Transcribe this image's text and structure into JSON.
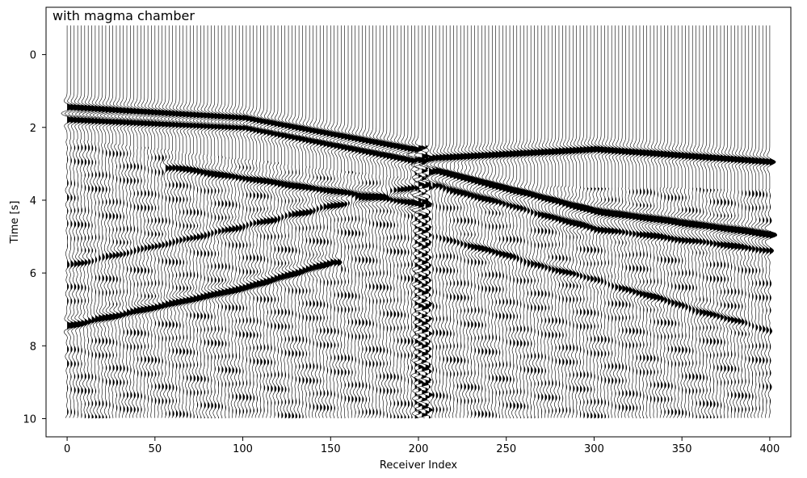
{
  "chart_data": {
    "type": "seismic-wiggle",
    "title": "with magma chamber",
    "xlabel": "Receiver Index",
    "ylabel": "Time [s]",
    "xlim": [
      -12,
      412
    ],
    "ylim": [
      10.5,
      -1.3
    ],
    "y_inverted": true,
    "x_ticks": [
      0,
      50,
      100,
      150,
      200,
      250,
      300,
      350,
      400
    ],
    "y_ticks": [
      0,
      2,
      4,
      6,
      8,
      10
    ],
    "receiver_range": [
      0,
      400
    ],
    "time_range": [
      -0.8,
      10
    ],
    "trace_color": "#000000",
    "fill_color": "#000000",
    "grid": false,
    "events": [
      {
        "kind": "direct-wave-left",
        "points": [
          [
            0,
            1.45
          ],
          [
            100,
            1.75
          ],
          [
            195,
            2.6
          ]
        ],
        "amp": 1.0
      },
      {
        "kind": "direct-wave-left-2",
        "points": [
          [
            0,
            1.78
          ],
          [
            100,
            2.0
          ],
          [
            195,
            2.9
          ]
        ],
        "amp": 0.9
      },
      {
        "kind": "direct-wave-right",
        "points": [
          [
            205,
            2.85
          ],
          [
            300,
            2.6
          ],
          [
            400,
            2.95
          ]
        ],
        "amp": 0.85
      },
      {
        "kind": "reflection-right",
        "points": [
          [
            210,
            3.2
          ],
          [
            300,
            4.3
          ],
          [
            400,
            4.95
          ]
        ],
        "amp": 1.0
      },
      {
        "kind": "reflection-right-2",
        "points": [
          [
            210,
            3.6
          ],
          [
            300,
            4.8
          ],
          [
            400,
            5.4
          ]
        ],
        "amp": 0.6
      },
      {
        "kind": "dipping-left",
        "points": [
          [
            0,
            7.45
          ],
          [
            100,
            6.4
          ],
          [
            150,
            5.7
          ]
        ],
        "amp": 0.8
      },
      {
        "kind": "chamber-reflection",
        "points": [
          [
            60,
            3.1
          ],
          [
            130,
            3.6
          ],
          [
            200,
            4.1
          ]
        ],
        "amp": 0.7
      },
      {
        "kind": "dipping-left-2",
        "points": [
          [
            0,
            5.8
          ],
          [
            100,
            4.7
          ],
          [
            200,
            3.6
          ]
        ],
        "amp": 0.45
      },
      {
        "kind": "lower-right",
        "points": [
          [
            210,
            5.0
          ],
          [
            300,
            6.2
          ],
          [
            400,
            7.6
          ]
        ],
        "amp": 0.45
      }
    ]
  }
}
